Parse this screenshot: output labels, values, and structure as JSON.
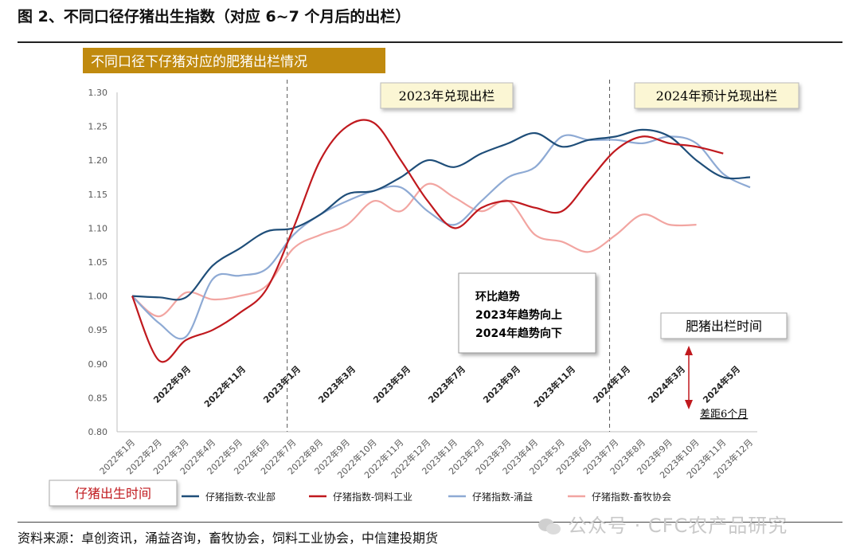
{
  "figure": {
    "title": "图 2、不同口径仔猪出生指数（对应 6~7 个月后的出栏）",
    "source": "资料来源：卓创资讯，涌益咨询，畜牧协会，饲料工业协会，中信建投期货",
    "watermark": "公众号 · CFC农产品研究"
  },
  "colors": {
    "banner": "#c08a0f",
    "note_fill": "#fbf6d4",
    "arrow": "#c0191e",
    "label_red": "#c0191e"
  },
  "chart_data": {
    "type": "line",
    "banner_title": "不同口径下仔猪对应的肥猪出栏情况",
    "xlabel": "",
    "ylabel": "",
    "ylim": [
      0.8,
      1.3
    ],
    "yticks": [
      "1.30",
      "1.25",
      "1.20",
      "1.15",
      "1.10",
      "1.05",
      "1.00",
      "0.95",
      "0.90",
      "0.85",
      "0.80"
    ],
    "grid": false,
    "x": [
      "2022年1月",
      "2022年2月",
      "2022年3月",
      "2022年4月",
      "2022年5月",
      "2022年6月",
      "2022年7月",
      "2022年8月",
      "2022年9月",
      "2022年10月",
      "2022年11月",
      "2022年12月",
      "2023年1月",
      "2023年2月",
      "2023年3月",
      "2023年4月",
      "2023年5月",
      "2023年6月",
      "2023年7月",
      "2023年8月",
      "2023年9月",
      "2023年10月",
      "2023年11月",
      "2023年12月"
    ],
    "finishing_labels": [
      "2022年9月",
      "2022年11月",
      "2023年1月",
      "2023年3月",
      "2023年5月",
      "2023年7月",
      "2023年9月",
      "2023年11月",
      "2024年1月",
      "2024年3月",
      "2024年5月"
    ],
    "series": [
      {
        "name": "仔猪指数-农业部",
        "color": "#1f4e79",
        "values": [
          1.0,
          0.998,
          0.998,
          1.045,
          1.07,
          1.095,
          1.1,
          1.12,
          1.15,
          1.155,
          1.175,
          1.2,
          1.19,
          1.21,
          1.225,
          1.24,
          1.22,
          1.23,
          1.235,
          1.245,
          1.235,
          1.2,
          1.175,
          1.175
        ]
      },
      {
        "name": "仔猪指数-饲料工业",
        "color": "#c0191e",
        "values": [
          1.0,
          0.905,
          0.935,
          0.95,
          0.975,
          1.01,
          1.1,
          1.2,
          1.25,
          1.255,
          1.2,
          1.14,
          1.1,
          1.13,
          1.14,
          1.13,
          1.125,
          1.17,
          1.215,
          1.235,
          1.225,
          1.22,
          1.21,
          null
        ]
      },
      {
        "name": "仔猪指数-涌益",
        "color": "#8eaad4",
        "values": [
          1.0,
          0.96,
          0.94,
          1.025,
          1.03,
          1.04,
          1.09,
          1.12,
          1.14,
          1.155,
          1.16,
          1.125,
          1.105,
          1.14,
          1.175,
          1.19,
          1.235,
          1.23,
          1.23,
          1.225,
          1.235,
          1.225,
          1.18,
          1.16
        ]
      },
      {
        "name": "仔猪指数-畜牧协会",
        "color": "#f2a5a1",
        "values": [
          1.0,
          0.97,
          1.005,
          0.995,
          1.0,
          1.015,
          1.07,
          1.09,
          1.105,
          1.14,
          1.125,
          1.165,
          1.145,
          1.125,
          1.14,
          1.09,
          1.08,
          1.065,
          1.09,
          1.12,
          1.105,
          1.105,
          null,
          null
        ]
      }
    ],
    "annotations": {
      "box_2023": "2023年兑现出栏",
      "box_2024": "2024年预计兑现出栏",
      "trend_title": "环比趋势",
      "trend_2023": "2023年趋势向上",
      "trend_2024": "2024年趋势向下",
      "hog_time": "肥猪出栏时间",
      "piglet_time": "仔猪出生时间",
      "gap": "差距6个月"
    }
  }
}
